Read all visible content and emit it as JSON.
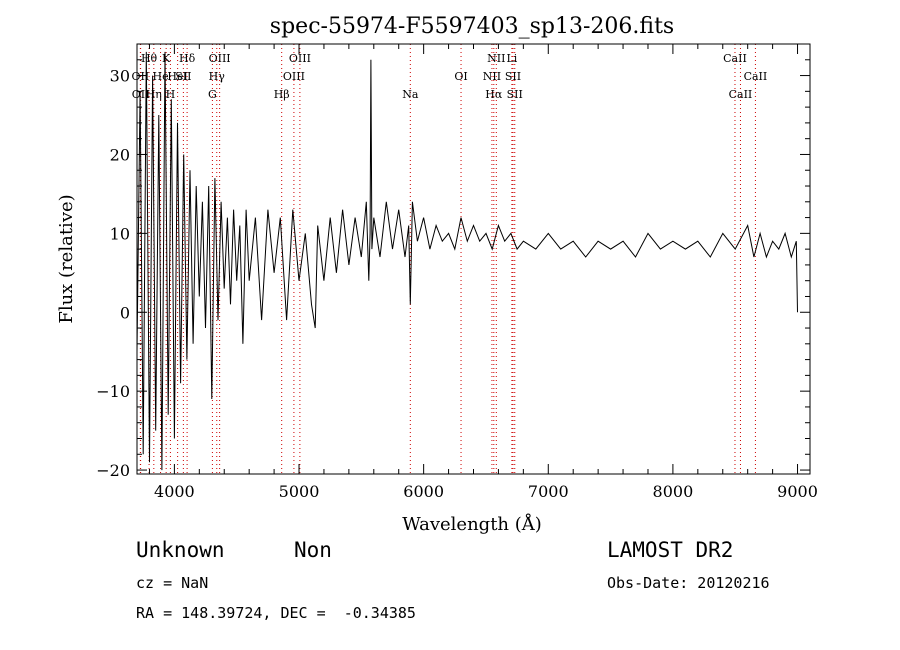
{
  "chart_data": {
    "type": "line",
    "title": "spec-55974-F5597403_sp13-206.fits",
    "xlabel": "Wavelength (Å)",
    "ylabel": "Flux (relative)",
    "xlim": [
      3700,
      9100
    ],
    "ylim": [
      -20.5,
      34
    ],
    "xticks": [
      4000,
      5000,
      6000,
      7000,
      8000,
      9000
    ],
    "yticks": [
      -20,
      -10,
      0,
      10,
      20,
      30
    ],
    "grid": false,
    "line_color": "#000000",
    "marker_color": "#cc0000",
    "series": [
      {
        "x": [
          3700,
          3725,
          3750,
          3775,
          3800,
          3825,
          3850,
          3875,
          3900,
          3925,
          3950,
          3975,
          4000,
          4025,
          4050,
          4075,
          4100,
          4125,
          4150,
          4175,
          4200,
          4225,
          4250,
          4275,
          4300,
          4325,
          4350,
          4375,
          4400,
          4425,
          4450,
          4475,
          4500,
          4525,
          4550,
          4575,
          4600,
          4650,
          4700,
          4750,
          4800,
          4850,
          4900,
          4950,
          5000,
          5050,
          5100,
          5130,
          5150,
          5200,
          5250,
          5300,
          5350,
          5400,
          5450,
          5500,
          5540,
          5560,
          5570,
          5577,
          5585,
          5600,
          5650,
          5700,
          5750,
          5800,
          5850,
          5880,
          5893,
          5910,
          5950,
          6000,
          6050,
          6100,
          6150,
          6200,
          6250,
          6300,
          6350,
          6400,
          6450,
          6500,
          6550,
          6600,
          6650,
          6700,
          6750,
          6800,
          6900,
          7000,
          7100,
          7200,
          7300,
          7400,
          7500,
          7600,
          7700,
          7800,
          7900,
          8000,
          8100,
          8200,
          8300,
          8400,
          8500,
          8600,
          8650,
          8700,
          8750,
          8800,
          8850,
          8900,
          8950,
          8990,
          9000
        ],
        "y": [
          -5,
          28,
          -18,
          33,
          -19,
          30,
          -15,
          25,
          -20,
          33,
          -13,
          27,
          -16,
          24,
          -9,
          20,
          -6,
          18,
          -4,
          16,
          2,
          14,
          -2,
          16,
          -11,
          17,
          -1,
          14,
          3,
          12,
          1,
          13,
          4,
          11,
          -4,
          13,
          4,
          12,
          -1,
          13,
          5,
          12,
          -1,
          13,
          4,
          10,
          1,
          -2,
          11,
          4,
          12,
          5,
          13,
          6,
          12,
          7,
          14,
          4,
          10,
          32,
          8,
          12,
          7,
          14,
          8,
          13,
          7,
          11,
          1,
          14,
          9,
          12,
          8,
          11,
          9,
          10,
          8,
          12,
          9,
          11,
          9,
          10,
          8,
          11,
          9,
          10,
          8,
          9,
          8,
          10,
          8,
          9,
          7,
          9,
          8,
          9,
          7,
          10,
          8,
          9,
          8,
          9,
          7,
          10,
          8,
          11,
          7,
          10,
          7,
          9,
          8,
          10,
          7,
          9,
          0
        ]
      }
    ],
    "lines": [
      {
        "label": "Hθ",
        "x": 3797,
        "row": 0
      },
      {
        "label": "K",
        "x": 3934,
        "row": 0
      },
      {
        "label": "Hδ",
        "x": 4102,
        "row": 0
      },
      {
        "label": "OIII",
        "x": 4363,
        "row": 0
      },
      {
        "label": "OIII",
        "x": 5007,
        "row": 0
      },
      {
        "label": "NII",
        "x": 6583,
        "row": 0
      },
      {
        "label": "Li",
        "x": 6708,
        "row": 0
      },
      {
        "label": "CaII",
        "x": 8498,
        "row": 0
      },
      {
        "label": "OII",
        "x": 3727,
        "row": 1
      },
      {
        "label": "He",
        "x": 3889,
        "row": 1
      },
      {
        "label": "HeI",
        "x": 4026,
        "row": 1
      },
      {
        "label": "SII",
        "x": 4072,
        "row": 1
      },
      {
        "label": "Hγ",
        "x": 4340,
        "row": 1
      },
      {
        "label": "OIII",
        "x": 4959,
        "row": 1
      },
      {
        "label": "OI",
        "x": 6300,
        "row": 1
      },
      {
        "label": "NII",
        "x": 6548,
        "row": 1
      },
      {
        "label": "SII",
        "x": 6717,
        "row": 1
      },
      {
        "label": "CaII",
        "x": 8662,
        "row": 1
      },
      {
        "label": "OII",
        "x": 3729,
        "row": 2
      },
      {
        "label": "Hη",
        "x": 3835,
        "row": 2
      },
      {
        "label": "H",
        "x": 3968,
        "row": 2
      },
      {
        "label": "G",
        "x": 4305,
        "row": 2
      },
      {
        "label": "Hβ",
        "x": 4861,
        "row": 2
      },
      {
        "label": "Na",
        "x": 5893,
        "row": 2
      },
      {
        "label": "Hα",
        "x": 6563,
        "row": 2
      },
      {
        "label": "SII",
        "x": 6731,
        "row": 2
      },
      {
        "label": "CaII",
        "x": 8542,
        "row": 2
      }
    ]
  },
  "info": {
    "class": "Unknown",
    "subclass": "Non",
    "survey": "LAMOST DR2",
    "cz": "cz = NaN",
    "obs_date": "Obs-Date: 20120216",
    "coords": "RA = 148.39724, DEC =  -0.34385"
  }
}
